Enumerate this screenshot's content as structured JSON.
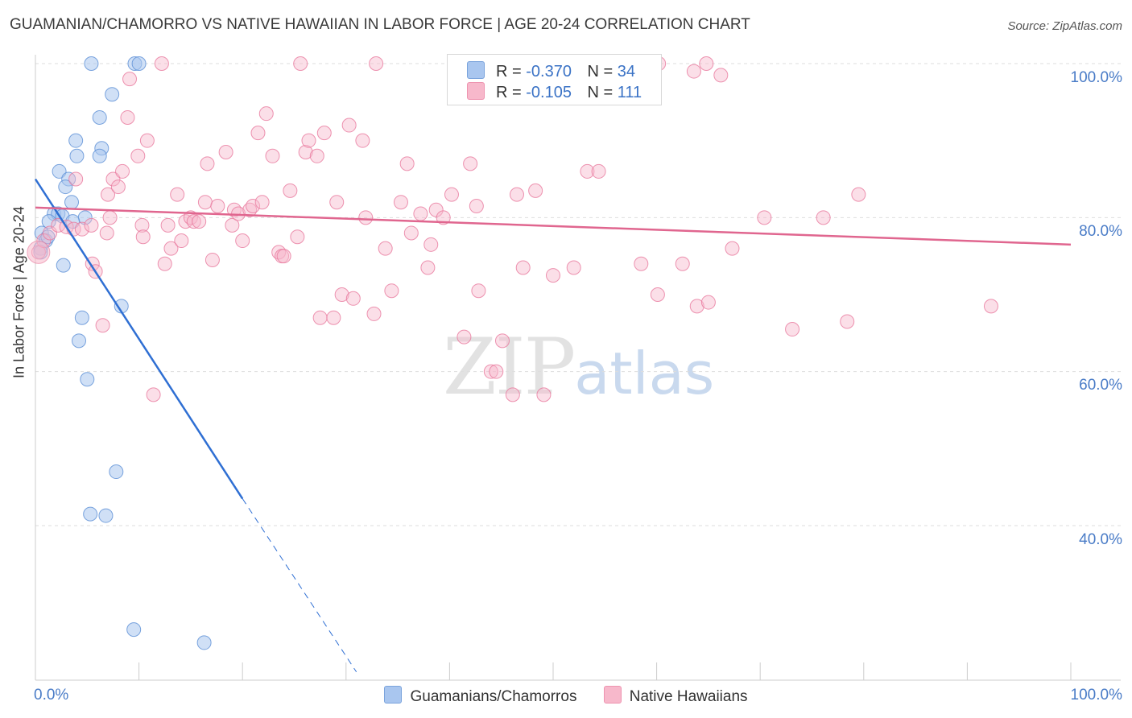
{
  "title": "GUAMANIAN/CHAMORRO VS NATIVE HAWAIIAN IN LABOR FORCE | AGE 20-24 CORRELATION CHART",
  "source": "Source: ZipAtlas.com",
  "watermark": {
    "zip": "ZIP",
    "atlas": "atlas"
  },
  "legend": {
    "r_label": "R =",
    "n_label": "N =",
    "rows": [
      {
        "r": "-0.370",
        "n": "34",
        "color": "#a9c6ef"
      },
      {
        "r": "-0.105",
        "n": "111",
        "color": "#f7b8cb"
      }
    ]
  },
  "bottom_legend": [
    "Guamanians/Chamorros",
    "Native Hawaiians"
  ],
  "chart_data": {
    "type": "scatter",
    "xlabel": "",
    "ylabel": "In Labor Force | Age 20-24",
    "xlim": [
      0,
      100
    ],
    "ylim": [
      20,
      102
    ],
    "x_tick_labels": [
      "0.0%",
      "100.0%"
    ],
    "y_ticks": [
      40,
      60,
      80,
      100
    ],
    "y_tick_labels": [
      "40.0%",
      "60.0%",
      "80.0%",
      "100.0%"
    ],
    "grid": true,
    "series": [
      {
        "name": "Guamanians/Chamorros",
        "color": "#5b8ed6",
        "fill": "#a9c6ef",
        "trend": {
          "x0": 0,
          "y0": 85.0,
          "x1": 20,
          "y1": 43.5,
          "dash_to_x": 31,
          "dash_to_y": 21.0
        },
        "points": [
          [
            5.4,
            100
          ],
          [
            9.6,
            100
          ],
          [
            10.0,
            100
          ],
          [
            7.4,
            96
          ],
          [
            6.2,
            93
          ],
          [
            3.9,
            90
          ],
          [
            4.0,
            88
          ],
          [
            6.4,
            89
          ],
          [
            6.2,
            88
          ],
          [
            2.3,
            86
          ],
          [
            3.2,
            85
          ],
          [
            2.9,
            84
          ],
          [
            3.5,
            82
          ],
          [
            1.8,
            80.5
          ],
          [
            2.2,
            80.5
          ],
          [
            2.6,
            80.2
          ],
          [
            4.8,
            80
          ],
          [
            3.6,
            79.5
          ],
          [
            1.3,
            79.5
          ],
          [
            0.6,
            78
          ],
          [
            1.0,
            77
          ],
          [
            0.5,
            76
          ],
          [
            0.5,
            75.5
          ],
          [
            2.7,
            73.8
          ],
          [
            8.3,
            68.5
          ],
          [
            4.5,
            67
          ],
          [
            4.2,
            64
          ],
          [
            5.0,
            59
          ],
          [
            7.8,
            47
          ],
          [
            5.3,
            41.5
          ],
          [
            6.8,
            41.3
          ],
          [
            9.5,
            26.5
          ],
          [
            16.3,
            24.8
          ],
          [
            1.2,
            77.5
          ]
        ]
      },
      {
        "name": "Native Hawaiians",
        "color": "#e8799d",
        "fill": "#f7b8cb",
        "trend": {
          "x0": 0,
          "y0": 81.3,
          "x1": 100,
          "y1": 76.5
        },
        "points": [
          [
            0.3,
            75.5
          ],
          [
            0.8,
            77
          ],
          [
            1.4,
            78
          ],
          [
            2.2,
            79
          ],
          [
            3.0,
            78.8
          ],
          [
            3.7,
            78.5
          ],
          [
            4.5,
            78.5
          ],
          [
            5.4,
            79
          ],
          [
            3.9,
            85
          ],
          [
            5.5,
            74
          ],
          [
            5.8,
            73
          ],
          [
            6.5,
            66
          ],
          [
            6.9,
            78
          ],
          [
            7.0,
            83
          ],
          [
            7.2,
            80
          ],
          [
            7.5,
            85
          ],
          [
            8.0,
            84
          ],
          [
            8.4,
            86
          ],
          [
            8.9,
            93
          ],
          [
            9.1,
            98
          ],
          [
            9.9,
            88
          ],
          [
            10.3,
            79
          ],
          [
            10.4,
            77.5
          ],
          [
            10.8,
            90
          ],
          [
            11.4,
            57
          ],
          [
            12.2,
            100
          ],
          [
            12.5,
            74
          ],
          [
            12.8,
            79
          ],
          [
            13.1,
            76
          ],
          [
            13.7,
            83
          ],
          [
            14.1,
            77
          ],
          [
            14.5,
            79.5
          ],
          [
            15.0,
            80
          ],
          [
            15.3,
            79.5
          ],
          [
            15.8,
            79.5
          ],
          [
            16.4,
            82
          ],
          [
            16.6,
            87
          ],
          [
            17.1,
            74.5
          ],
          [
            17.6,
            81.5
          ],
          [
            18.4,
            88.5
          ],
          [
            19.0,
            79
          ],
          [
            19.2,
            81
          ],
          [
            19.6,
            80.5
          ],
          [
            20.0,
            77
          ],
          [
            20.7,
            81
          ],
          [
            21.0,
            81.5
          ],
          [
            21.5,
            91
          ],
          [
            21.9,
            82
          ],
          [
            22.3,
            93.5
          ],
          [
            22.9,
            88
          ],
          [
            23.5,
            75.5
          ],
          [
            23.8,
            75
          ],
          [
            24.0,
            75
          ],
          [
            24.6,
            83.5
          ],
          [
            25.3,
            77.5
          ],
          [
            25.6,
            100
          ],
          [
            26.1,
            88.5
          ],
          [
            26.4,
            90
          ],
          [
            27.2,
            88
          ],
          [
            27.5,
            67
          ],
          [
            27.9,
            91
          ],
          [
            28.8,
            67
          ],
          [
            29.1,
            82
          ],
          [
            29.6,
            70
          ],
          [
            30.3,
            92
          ],
          [
            30.7,
            69.5
          ],
          [
            31.6,
            90
          ],
          [
            31.9,
            80
          ],
          [
            32.7,
            67.5
          ],
          [
            32.9,
            100
          ],
          [
            33.8,
            76
          ],
          [
            34.4,
            70.5
          ],
          [
            35.3,
            82
          ],
          [
            35.9,
            87
          ],
          [
            36.3,
            78
          ],
          [
            37.2,
            80.5
          ],
          [
            37.9,
            73.5
          ],
          [
            38.2,
            76.5
          ],
          [
            38.7,
            81
          ],
          [
            39.4,
            80
          ],
          [
            40.2,
            83
          ],
          [
            41.4,
            64.5
          ],
          [
            42.0,
            87
          ],
          [
            42.6,
            81.5
          ],
          [
            42.8,
            70.5
          ],
          [
            44.0,
            60
          ],
          [
            44.5,
            60
          ],
          [
            45.1,
            64
          ],
          [
            46.1,
            57
          ],
          [
            46.5,
            83
          ],
          [
            47.1,
            73.5
          ],
          [
            48.3,
            83.5
          ],
          [
            49.1,
            57
          ],
          [
            50.0,
            72.5
          ],
          [
            52.0,
            73.5
          ],
          [
            53.3,
            86
          ],
          [
            54.4,
            86
          ],
          [
            58.5,
            74
          ],
          [
            60.1,
            70
          ],
          [
            60.2,
            100
          ],
          [
            62.5,
            74
          ],
          [
            63.6,
            99
          ],
          [
            63.9,
            68.5
          ],
          [
            64.8,
            100
          ],
          [
            65.0,
            69
          ],
          [
            66.2,
            98.5
          ],
          [
            67.3,
            76
          ],
          [
            70.4,
            80
          ],
          [
            73.1,
            65.5
          ],
          [
            76.1,
            80
          ],
          [
            78.4,
            66.5
          ],
          [
            79.5,
            83
          ],
          [
            92.3,
            68.5
          ]
        ]
      }
    ]
  }
}
